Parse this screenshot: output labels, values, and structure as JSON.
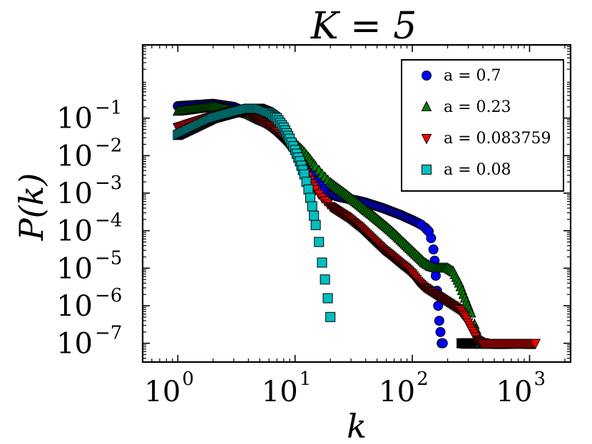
{
  "chart_data": {
    "type": "scatter",
    "title": "K = 5",
    "xlabel": "k",
    "ylabel": "P(k)",
    "xscale": "log",
    "yscale": "log",
    "xlim_log10": [
      -0.3,
      3.35
    ],
    "ylim_log10": [
      -7.5,
      0.95
    ],
    "x_ticks": [
      {
        "base": "10",
        "exp": "0",
        "log10": 0
      },
      {
        "base": "10",
        "exp": "1",
        "log10": 1
      },
      {
        "base": "10",
        "exp": "2",
        "log10": 2
      },
      {
        "base": "10",
        "exp": "3",
        "log10": 3
      }
    ],
    "y_ticks": [
      {
        "base": "10",
        "exp": "−1",
        "log10": -1
      },
      {
        "base": "10",
        "exp": "−2",
        "log10": -2
      },
      {
        "base": "10",
        "exp": "−3",
        "log10": -3
      },
      {
        "base": "10",
        "exp": "−4",
        "log10": -4
      },
      {
        "base": "10",
        "exp": "−5",
        "log10": -5
      },
      {
        "base": "10",
        "exp": "−6",
        "log10": -6
      },
      {
        "base": "10",
        "exp": "−7",
        "log10": -7
      }
    ],
    "legend_position": "top-right",
    "series": [
      {
        "name": "a = 0.7",
        "marker": "circle",
        "color": "#0000ff",
        "points_log10": [
          [
            0.0,
            -0.68
          ],
          [
            0.301,
            -0.62
          ],
          [
            0.477,
            -0.7
          ],
          [
            0.602,
            -0.87
          ],
          [
            0.699,
            -1.02
          ],
          [
            0.778,
            -1.18
          ],
          [
            0.845,
            -1.35
          ],
          [
            0.903,
            -1.52
          ],
          [
            0.954,
            -1.68
          ],
          [
            1.0,
            -1.84
          ],
          [
            1.041,
            -2.0
          ],
          [
            1.079,
            -2.13
          ],
          [
            1.114,
            -2.28
          ],
          [
            1.146,
            -2.43
          ],
          [
            1.176,
            -2.55
          ],
          [
            1.204,
            -2.66
          ],
          [
            1.23,
            -2.78
          ],
          [
            1.255,
            -2.87
          ],
          [
            1.279,
            -2.95
          ],
          [
            1.301,
            -3.02
          ],
          [
            1.35,
            -3.08
          ],
          [
            1.4,
            -3.12
          ],
          [
            1.45,
            -3.15
          ],
          [
            1.5,
            -3.18
          ],
          [
            1.55,
            -3.21
          ],
          [
            1.6,
            -3.25
          ],
          [
            1.65,
            -3.3
          ],
          [
            1.7,
            -3.35
          ],
          [
            1.75,
            -3.4
          ],
          [
            1.8,
            -3.46
          ],
          [
            1.85,
            -3.52
          ],
          [
            1.9,
            -3.58
          ],
          [
            1.95,
            -3.65
          ],
          [
            2.0,
            -3.72
          ],
          [
            2.04,
            -3.78
          ],
          [
            2.08,
            -3.85
          ],
          [
            2.11,
            -3.92
          ],
          [
            2.14,
            -4.02
          ],
          [
            2.16,
            -4.2
          ],
          [
            2.18,
            -4.5
          ],
          [
            2.19,
            -4.8
          ],
          [
            2.2,
            -5.2
          ],
          [
            2.21,
            -5.6
          ],
          [
            2.22,
            -6.0
          ],
          [
            2.23,
            -6.4
          ],
          [
            2.24,
            -6.7
          ],
          [
            2.25,
            -7.0
          ],
          [
            2.26,
            -7.0
          ]
        ]
      },
      {
        "name": "a = 0.23",
        "marker": "triangle-up",
        "color": "#008000",
        "points_log10": [
          [
            0.0,
            -0.82
          ],
          [
            0.301,
            -0.7
          ],
          [
            0.477,
            -0.8
          ],
          [
            0.602,
            -0.9
          ],
          [
            0.699,
            -1.05
          ],
          [
            0.778,
            -1.15
          ],
          [
            0.845,
            -1.28
          ],
          [
            0.903,
            -1.42
          ],
          [
            0.954,
            -1.55
          ],
          [
            1.0,
            -1.68
          ],
          [
            1.041,
            -1.8
          ],
          [
            1.079,
            -1.92
          ],
          [
            1.114,
            -2.05
          ],
          [
            1.146,
            -2.18
          ],
          [
            1.176,
            -2.3
          ],
          [
            1.204,
            -2.4
          ],
          [
            1.23,
            -2.5
          ],
          [
            1.255,
            -2.58
          ],
          [
            1.279,
            -2.66
          ],
          [
            1.301,
            -2.73
          ],
          [
            1.35,
            -2.85
          ],
          [
            1.4,
            -2.96
          ],
          [
            1.45,
            -3.08
          ],
          [
            1.5,
            -3.2
          ],
          [
            1.55,
            -3.32
          ],
          [
            1.6,
            -3.45
          ],
          [
            1.65,
            -3.57
          ],
          [
            1.7,
            -3.7
          ],
          [
            1.75,
            -3.83
          ],
          [
            1.8,
            -3.96
          ],
          [
            1.85,
            -4.1
          ],
          [
            1.9,
            -4.25
          ],
          [
            1.95,
            -4.4
          ],
          [
            2.0,
            -4.55
          ],
          [
            2.05,
            -4.7
          ],
          [
            2.1,
            -4.85
          ],
          [
            2.15,
            -4.95
          ],
          [
            2.2,
            -5.0
          ],
          [
            2.25,
            -5.0
          ],
          [
            2.3,
            -5.0
          ],
          [
            2.35,
            -5.1
          ],
          [
            2.4,
            -5.4
          ],
          [
            2.45,
            -5.8
          ],
          [
            2.5,
            -6.2
          ],
          [
            2.53,
            -6.5
          ],
          [
            2.56,
            -6.8
          ],
          [
            2.58,
            -7.0
          ],
          [
            2.6,
            -7.0
          ]
        ]
      },
      {
        "name": "a = 0.083759",
        "marker": "triangle-down",
        "color": "#ff0000",
        "points_log10": [
          [
            0.0,
            -1.25
          ],
          [
            0.301,
            -0.95
          ],
          [
            0.477,
            -0.8
          ],
          [
            0.602,
            -0.85
          ],
          [
            0.699,
            -1.05
          ],
          [
            0.778,
            -1.2
          ],
          [
            0.845,
            -1.35
          ],
          [
            0.903,
            -1.55
          ],
          [
            0.954,
            -1.75
          ],
          [
            1.0,
            -1.95
          ],
          [
            1.041,
            -2.15
          ],
          [
            1.079,
            -2.35
          ],
          [
            1.114,
            -2.55
          ],
          [
            1.146,
            -2.75
          ],
          [
            1.176,
            -2.9
          ],
          [
            1.204,
            -3.02
          ],
          [
            1.23,
            -3.12
          ],
          [
            1.255,
            -3.2
          ],
          [
            1.279,
            -3.28
          ],
          [
            1.301,
            -3.35
          ],
          [
            1.35,
            -3.45
          ],
          [
            1.4,
            -3.55
          ],
          [
            1.45,
            -3.65
          ],
          [
            1.5,
            -3.78
          ],
          [
            1.55,
            -3.9
          ],
          [
            1.6,
            -4.05
          ],
          [
            1.65,
            -4.2
          ],
          [
            1.7,
            -4.35
          ],
          [
            1.75,
            -4.5
          ],
          [
            1.8,
            -4.62
          ],
          [
            1.85,
            -4.75
          ],
          [
            1.9,
            -4.88
          ],
          [
            1.95,
            -5.0
          ],
          [
            2.0,
            -5.15
          ],
          [
            2.05,
            -5.35
          ],
          [
            2.1,
            -5.5
          ],
          [
            2.15,
            -5.6
          ],
          [
            2.2,
            -5.7
          ],
          [
            2.25,
            -5.8
          ],
          [
            2.3,
            -5.9
          ],
          [
            2.35,
            -6.0
          ],
          [
            2.4,
            -6.1
          ],
          [
            2.45,
            -6.3
          ],
          [
            2.5,
            -6.6
          ],
          [
            2.55,
            -6.9
          ],
          [
            2.6,
            -7.0
          ],
          [
            2.7,
            -7.0
          ],
          [
            2.8,
            -7.0
          ],
          [
            2.9,
            -7.0
          ],
          [
            3.0,
            -7.0
          ],
          [
            3.05,
            -7.0
          ]
        ]
      },
      {
        "name": "a = 0.08",
        "marker": "square",
        "color": "#00bfbf",
        "points_log10": [
          [
            0.0,
            -1.45
          ],
          [
            0.301,
            -1.0
          ],
          [
            0.477,
            -0.85
          ],
          [
            0.602,
            -0.75
          ],
          [
            0.699,
            -0.75
          ],
          [
            0.778,
            -0.85
          ],
          [
            0.845,
            -1.0
          ],
          [
            0.903,
            -1.25
          ],
          [
            0.954,
            -1.55
          ],
          [
            1.0,
            -1.85
          ],
          [
            1.041,
            -2.15
          ],
          [
            1.079,
            -2.5
          ],
          [
            1.114,
            -2.9
          ],
          [
            1.146,
            -3.35
          ],
          [
            1.176,
            -3.85
          ],
          [
            1.204,
            -4.3
          ],
          [
            1.23,
            -4.85
          ],
          [
            1.255,
            -5.3
          ],
          [
            1.279,
            -5.8
          ],
          [
            1.301,
            -6.3
          ]
        ]
      }
    ],
    "bottom_rows": [
      {
        "marker": "triangle-down",
        "color": "#ff0000",
        "from_log10": 2.42,
        "to_log10": 3.05,
        "y_log10": -7.0
      },
      {
        "marker": "square",
        "color": "#000000",
        "from_log10": 2.42,
        "to_log10": 2.62,
        "y_log10": -7.0
      }
    ]
  }
}
